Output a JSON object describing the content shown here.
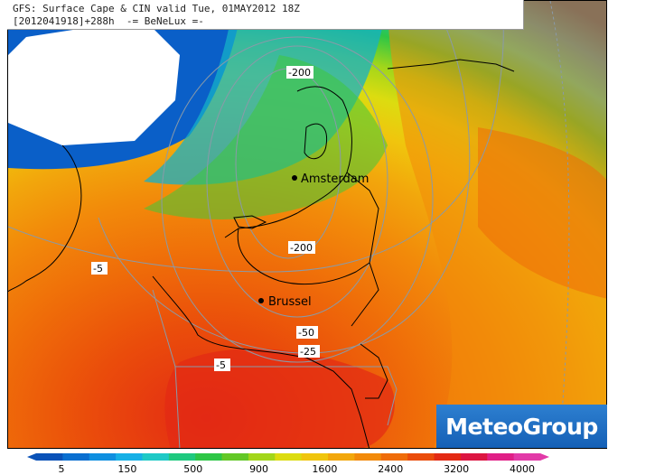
{
  "title": {
    "line1": "GFS: Surface Cape & CIN valid Tue, 01MAY2012 18Z",
    "line2": "[2012041918]+288h  -= BeNeLux =-"
  },
  "cities": [
    {
      "name": "Amsterdam"
    },
    {
      "name": "Brussel"
    }
  ],
  "cin_contour_labels": [
    "-200",
    "-200",
    "-5",
    "-50",
    "-25",
    "-5"
  ],
  "logo_text": "MeteoGroup",
  "legend": {
    "ticks": [
      "5",
      "150",
      "500",
      "900",
      "1600",
      "2400",
      "3200",
      "4000"
    ],
    "colors": [
      "#0a52b8",
      "#0a6fd0",
      "#0f8fe0",
      "#16b0e6",
      "#1ec9c6",
      "#1fc97f",
      "#2dc646",
      "#63c827",
      "#a2d61a",
      "#dcdc10",
      "#f0c50d",
      "#f2a70c",
      "#f28a0a",
      "#ef6c09",
      "#ea4c0b",
      "#e32a14",
      "#dc1542",
      "#e01f86",
      "#e23aa8"
    ]
  }
}
